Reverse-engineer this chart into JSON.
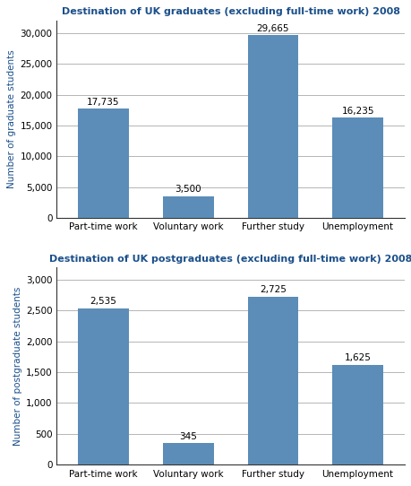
{
  "grad_title": "Destination of UK graduates (excluding full-time work) 2008",
  "postgrad_title": "Destination of UK postgraduates (excluding full-time work) 2008",
  "categories": [
    "Part-time work",
    "Voluntary work",
    "Further study",
    "Unemployment"
  ],
  "grad_values": [
    17735,
    3500,
    29665,
    16235
  ],
  "grad_labels": [
    "17,735",
    "3,500",
    "29,665",
    "16,235"
  ],
  "postgrad_values": [
    2535,
    345,
    2725,
    1625
  ],
  "postgrad_labels": [
    "2,535",
    "345",
    "2,725",
    "1,625"
  ],
  "bar_color": "#5B8DB8",
  "grad_ylabel": "Number of graduate students",
  "postgrad_ylabel": "Number of postgraduate students",
  "grad_ylim": [
    0,
    32000
  ],
  "grad_yticks": [
    0,
    5000,
    10000,
    15000,
    20000,
    25000,
    30000
  ],
  "postgrad_ylim": [
    0,
    3200
  ],
  "postgrad_yticks": [
    0,
    500,
    1000,
    1500,
    2000,
    2500,
    3000
  ],
  "title_color": "#1A4F8A",
  "ylabel_color": "#1A4F8A",
  "background_color": "#FFFFFF",
  "grid_color": "#AAAAAA",
  "spine_color": "#333333",
  "label_fontsize": 7.5,
  "title_fontsize": 8.0,
  "ylabel_fontsize": 7.5,
  "bar_width": 0.6,
  "annotation_fontsize": 7.5
}
